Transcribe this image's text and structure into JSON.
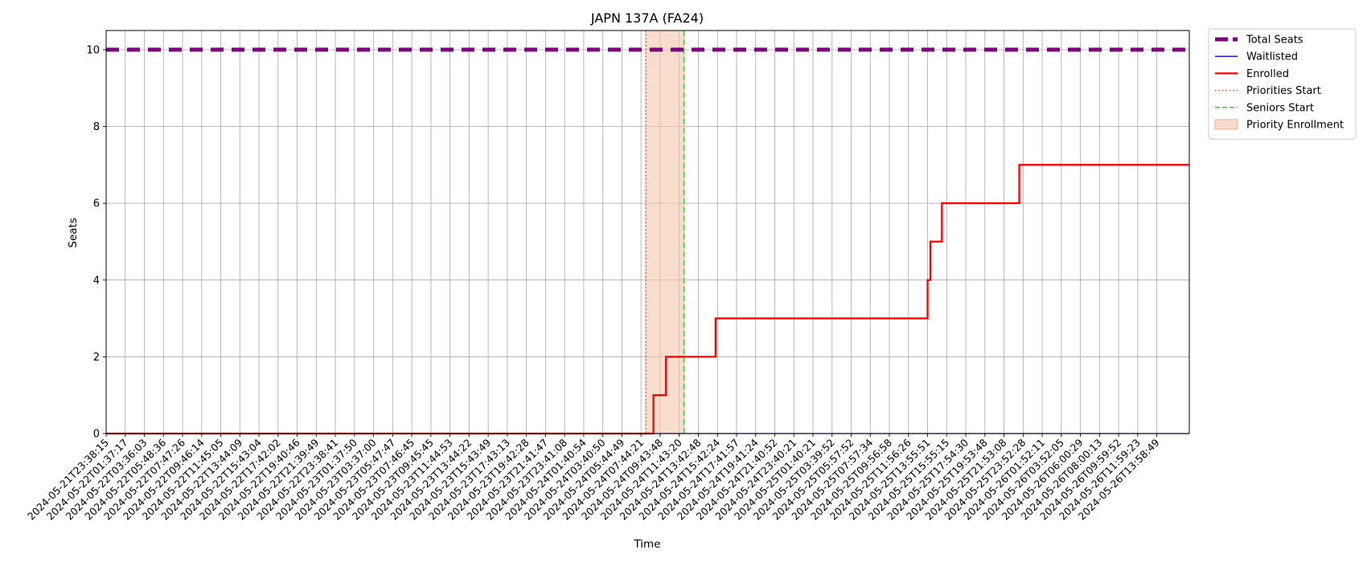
{
  "chart_data": {
    "type": "line",
    "title": "JAPN 137A (FA24)",
    "xlabel": "Time",
    "ylabel": "Seats",
    "ylim": [
      0,
      10.5
    ],
    "yticks": [
      0,
      2,
      4,
      6,
      8,
      10
    ],
    "grid": true,
    "legend_position": "outside-top-right",
    "x_ticks": [
      "2024-05-21T23:38:15",
      "2024-05-22T01:37:17",
      "2024-05-22T03:36:03",
      "2024-05-22T05:48:36",
      "2024-05-22T07:47:26",
      "2024-05-22T09:46:14",
      "2024-05-22T11:45:05",
      "2024-05-22T13:44:09",
      "2024-05-22T15:43:04",
      "2024-05-22T17:42:02",
      "2024-05-22T19:40:46",
      "2024-05-22T21:39:49",
      "2024-05-22T23:38:41",
      "2024-05-23T01:37:50",
      "2024-05-23T03:37:00",
      "2024-05-23T05:47:47",
      "2024-05-23T07:46:45",
      "2024-05-23T09:45:45",
      "2024-05-23T11:44:53",
      "2024-05-23T13:44:22",
      "2024-05-23T15:43:49",
      "2024-05-23T17:43:13",
      "2024-05-23T19:42:28",
      "2024-05-23T21:41:47",
      "2024-05-23T23:41:08",
      "2024-05-24T01:40:54",
      "2024-05-24T03:40:50",
      "2024-05-24T05:44:49",
      "2024-05-24T07:44:21",
      "2024-05-24T09:43:48",
      "2024-05-24T11:43:20",
      "2024-05-24T13:42:48",
      "2024-05-24T15:42:24",
      "2024-05-24T17:41:57",
      "2024-05-24T19:41:24",
      "2024-05-24T21:40:52",
      "2024-05-24T23:40:21",
      "2024-05-25T01:40:21",
      "2024-05-25T03:39:52",
      "2024-05-25T05:57:52",
      "2024-05-25T07:57:34",
      "2024-05-25T09:56:58",
      "2024-05-25T11:56:26",
      "2024-05-25T13:55:51",
      "2024-05-25T15:55:15",
      "2024-05-25T17:54:30",
      "2024-05-25T19:53:48",
      "2024-05-25T21:53:08",
      "2024-05-25T23:52:28",
      "2024-05-26T01:52:11",
      "2024-05-26T03:52:05",
      "2024-05-26T06:00:29",
      "2024-05-26T08:00:13",
      "2024-05-26T09:59:52",
      "2024-05-26T11:59:23",
      "2024-05-26T13:58:49"
    ],
    "series": [
      {
        "name": "Total Seats",
        "style": "dashed-thick",
        "color": "#800080",
        "points": [
          {
            "x": 0,
            "y": 10
          },
          {
            "x": 56.7,
            "y": 10
          }
        ]
      },
      {
        "name": "Waitlisted",
        "style": "solid-thin",
        "color": "#0000ff",
        "points": [
          {
            "x": 0,
            "y": 0
          },
          {
            "x": 56.7,
            "y": 0
          }
        ]
      },
      {
        "name": "Enrolled",
        "style": "solid-thick",
        "color": "#ff0000",
        "points": [
          {
            "x": 0,
            "y": 0
          },
          {
            "x": 28.65,
            "y": 0
          },
          {
            "x": 28.65,
            "y": 1
          },
          {
            "x": 29.3,
            "y": 1
          },
          {
            "x": 29.3,
            "y": 2
          },
          {
            "x": 31.9,
            "y": 2
          },
          {
            "x": 31.9,
            "y": 3
          },
          {
            "x": 43.0,
            "y": 3
          },
          {
            "x": 43.0,
            "y": 4
          },
          {
            "x": 43.15,
            "y": 4
          },
          {
            "x": 43.15,
            "y": 5
          },
          {
            "x": 43.75,
            "y": 5
          },
          {
            "x": 43.75,
            "y": 6
          },
          {
            "x": 47.8,
            "y": 6
          },
          {
            "x": 47.8,
            "y": 7
          },
          {
            "x": 56.7,
            "y": 7
          }
        ]
      }
    ],
    "markers": [
      {
        "name": "Priorities Start",
        "x": 28.25,
        "color": "#e8531f",
        "style": "dotted"
      },
      {
        "name": "Seniors Start",
        "x": 30.25,
        "color": "#32cd32",
        "style": "dashed"
      }
    ],
    "spans": [
      {
        "name": "Priority Enrollment",
        "x0": 28.25,
        "x1": 30.25,
        "color": "#f4c6ab"
      }
    ],
    "x_range": [
      0,
      56.7
    ]
  }
}
